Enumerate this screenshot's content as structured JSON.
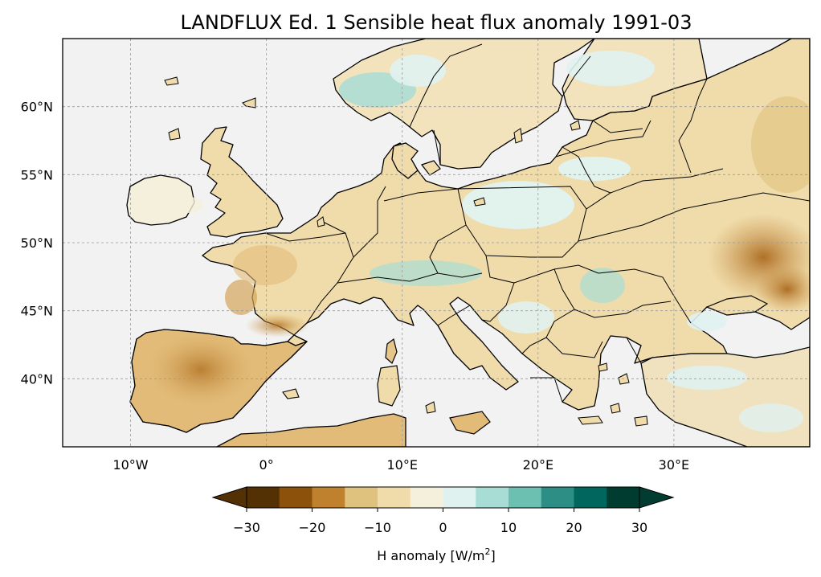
{
  "title": "LANDFLUX Ed. 1 Sensible heat flux anomaly 1991-03",
  "map": {
    "projection": "PlateCarree",
    "lon_range": [
      -15,
      40
    ],
    "lat_range": [
      35,
      65
    ],
    "ocean_color": "#f2f2f2",
    "gridlines": true,
    "lon_ticks": [
      {
        "value": -10,
        "label": "10°W"
      },
      {
        "value": 0,
        "label": "0°"
      },
      {
        "value": 10,
        "label": "10°E"
      },
      {
        "value": 20,
        "label": "20°E"
      },
      {
        "value": 30,
        "label": "30°E"
      }
    ],
    "lat_ticks": [
      {
        "value": 60,
        "label": "60°N"
      },
      {
        "value": 55,
        "label": "55°N"
      },
      {
        "value": 50,
        "label": "50°N"
      },
      {
        "value": 45,
        "label": "45°N"
      },
      {
        "value": 40,
        "label": "40°N"
      }
    ]
  },
  "colorbar": {
    "label_main": "H anomaly [W/m",
    "label_sup": "2",
    "label_end": "]",
    "extend": "both",
    "boundaries": [
      -30,
      -25,
      -20,
      -15,
      -10,
      -5,
      0,
      5,
      10,
      15,
      20,
      25,
      30
    ],
    "colors": [
      "#543005",
      "#8c510a",
      "#bf812d",
      "#dfc27d",
      "#f0dcab",
      "#f5f0dc",
      "#e0f2f0",
      "#a8ddd5",
      "#6bc0b2",
      "#2c8e84",
      "#01665e",
      "#003c30"
    ],
    "under_color": "#543005",
    "over_color": "#003c30",
    "ticks": [
      {
        "value": -30,
        "label": "−30"
      },
      {
        "value": -20,
        "label": "−20"
      },
      {
        "value": -10,
        "label": "−10"
      },
      {
        "value": 0,
        "label": "0"
      },
      {
        "value": 10,
        "label": "10"
      },
      {
        "value": 20,
        "label": "20"
      },
      {
        "value": 30,
        "label": "30"
      }
    ]
  }
}
